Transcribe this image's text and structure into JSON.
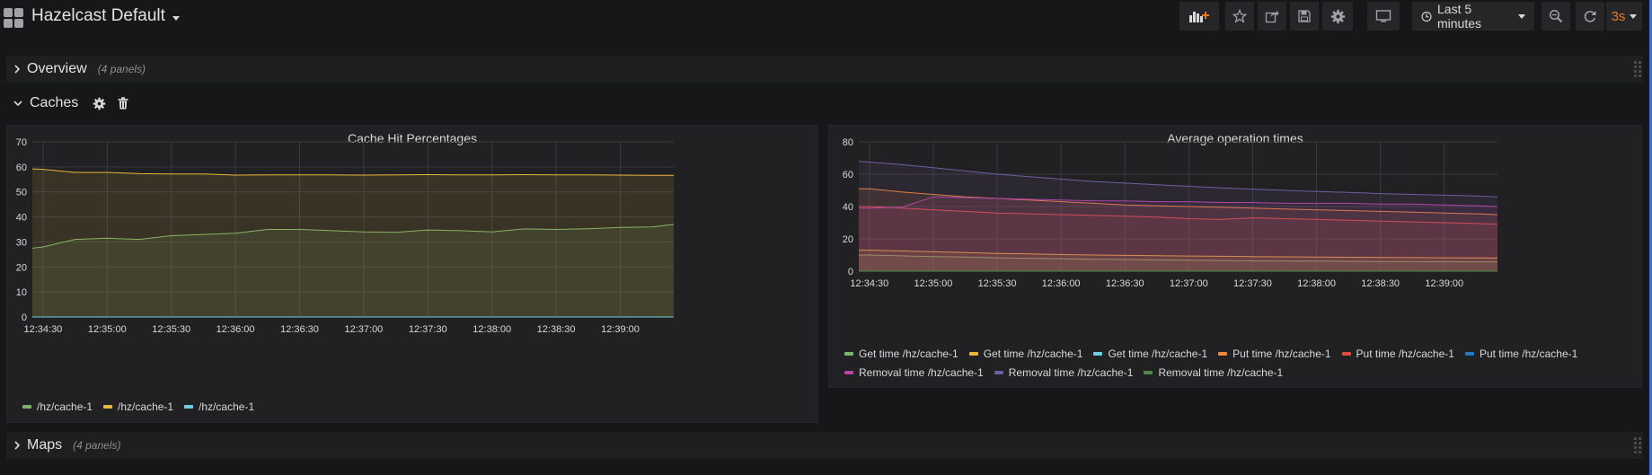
{
  "dashboard": {
    "title": "Hazelcast Default"
  },
  "toolbar": {
    "add_panel_icon": "add-panel-icon",
    "time_range": "Last 5 minutes",
    "refresh_interval": "3s"
  },
  "rows": {
    "overview": {
      "title": "Overview",
      "count": "(4 panels)"
    },
    "caches": {
      "title": "Caches"
    },
    "maps": {
      "title": "Maps",
      "count": "(4 panels)"
    }
  },
  "colors": {
    "green": "#7eb26d",
    "yellow": "#eab839",
    "cyan": "#6ed0e0",
    "orange": "#ef843c",
    "red": "#e24d42",
    "blue": "#1f78c1",
    "magenta": "#ba43a9",
    "purple": "#705da0",
    "darkgreen": "#508642"
  },
  "chart_data": [
    {
      "type": "area",
      "title": "Cache Hit Percentages",
      "ylim": [
        0,
        70
      ],
      "yticks": [
        "70",
        "60",
        "50",
        "40",
        "30",
        "20",
        "10",
        "0"
      ],
      "xticks": [
        "12:34:30",
        "12:35:00",
        "12:35:30",
        "12:36:00",
        "12:36:30",
        "12:37:00",
        "12:37:30",
        "12:38:00",
        "12:38:30",
        "12:39:00"
      ],
      "x": [
        "12:34:25",
        "12:34:30",
        "12:34:45",
        "12:35:00",
        "12:35:15",
        "12:35:30",
        "12:35:45",
        "12:36:00",
        "12:36:15",
        "12:36:30",
        "12:36:45",
        "12:37:00",
        "12:37:15",
        "12:37:30",
        "12:37:45",
        "12:38:00",
        "12:38:15",
        "12:38:30",
        "12:38:45",
        "12:39:00",
        "12:39:15",
        "12:39:25"
      ],
      "series": [
        {
          "name": "/hz/cache-1",
          "color": "#7eb26d",
          "values": [
            27.5,
            28,
            31,
            31.5,
            31,
            32.5,
            33,
            33.5,
            35,
            35,
            34.5,
            34,
            33.8,
            34.8,
            34.5,
            34,
            35.2,
            35,
            35.3,
            35.8,
            36,
            37
          ]
        },
        {
          "name": "/hz/cache-1",
          "color": "#eab839",
          "values": [
            59.2,
            59,
            57.8,
            57.8,
            57.3,
            57.2,
            57.2,
            56.7,
            56.8,
            56.8,
            56.8,
            56.7,
            56.8,
            56.9,
            56.8,
            56.8,
            56.9,
            56.8,
            56.8,
            56.7,
            56.6,
            56.6
          ]
        },
        {
          "name": "/hz/cache-1",
          "color": "#6ed0e0",
          "values": [
            0,
            0,
            0,
            0,
            0,
            0,
            0,
            0,
            0,
            0,
            0,
            0,
            0,
            0,
            0,
            0,
            0,
            0,
            0,
            0,
            0,
            0
          ]
        }
      ]
    },
    {
      "type": "area",
      "title": "Average operation times",
      "ylim": [
        0,
        80
      ],
      "yticks": [
        "80",
        "60",
        "40",
        "20",
        "0"
      ],
      "xticks": [
        "12:34:30",
        "12:35:00",
        "12:35:30",
        "12:36:00",
        "12:36:30",
        "12:37:00",
        "12:37:30",
        "12:38:00",
        "12:38:30",
        "12:39:00"
      ],
      "x": [
        "12:34:25",
        "12:34:30",
        "12:34:45",
        "12:35:00",
        "12:35:15",
        "12:35:30",
        "12:35:45",
        "12:36:00",
        "12:36:15",
        "12:36:30",
        "12:36:45",
        "12:37:00",
        "12:37:15",
        "12:37:30",
        "12:37:45",
        "12:38:00",
        "12:38:15",
        "12:38:30",
        "12:38:45",
        "12:39:00",
        "12:39:15",
        "12:39:25"
      ],
      "series": [
        {
          "name": "Get time /hz/cache-1",
          "color": "#7eb26d",
          "values": [
            10,
            10,
            9.5,
            9,
            8.7,
            8.3,
            8,
            7.7,
            7.4,
            7.2,
            7,
            6.8,
            6.6,
            6.4,
            6.3,
            6.2,
            6.1,
            6,
            6,
            5.9,
            5.8,
            5.8
          ]
        },
        {
          "name": "Get time /hz/cache-1",
          "color": "#eab839",
          "values": [
            13,
            13,
            12.5,
            12,
            11.5,
            11,
            10.7,
            10.3,
            10,
            9.8,
            9.6,
            9.4,
            9.2,
            9,
            8.9,
            8.8,
            8.6,
            8.5,
            8.4,
            8.3,
            8.2,
            8.1
          ]
        },
        {
          "name": "Get time /hz/cache-1",
          "color": "#6ed0e0",
          "values": [
            0,
            0,
            0,
            0,
            0,
            0,
            0,
            0,
            0,
            0,
            0,
            0,
            0,
            0,
            0,
            0,
            0,
            0,
            0,
            0,
            0,
            0
          ]
        },
        {
          "name": "Put time /hz/cache-1",
          "color": "#ef843c",
          "values": [
            51,
            51,
            49,
            47.5,
            46,
            45,
            44,
            43,
            42,
            41,
            40.5,
            40,
            39.5,
            39,
            38.5,
            38,
            37.5,
            37,
            36.5,
            36,
            35.5,
            35
          ]
        },
        {
          "name": "Put time /hz/cache-1",
          "color": "#e24d42",
          "values": [
            40,
            40,
            39,
            38,
            37,
            36,
            35.5,
            35,
            34.5,
            34,
            33.5,
            32.5,
            32,
            33,
            32.5,
            32,
            31.5,
            31,
            30.5,
            30,
            29.5,
            29
          ]
        },
        {
          "name": "Put time /hz/cache-1",
          "color": "#1f78c1",
          "values": [
            0,
            0,
            0,
            0,
            0,
            0,
            0,
            0,
            0,
            0,
            0,
            0,
            0,
            0,
            0,
            0,
            0,
            0,
            0,
            0,
            0,
            0
          ]
        },
        {
          "name": "Removal time /hz/cache-1",
          "color": "#ba43a9",
          "values": [
            39,
            39,
            39.5,
            46,
            45.5,
            45,
            44.5,
            44,
            43.5,
            43.5,
            43,
            43,
            42.5,
            42.5,
            42,
            42,
            42,
            41.5,
            41.5,
            41,
            40.5,
            40
          ]
        },
        {
          "name": "Removal time /hz/cache-1",
          "color": "#705da0",
          "values": [
            68,
            67.5,
            66,
            64,
            62,
            60,
            58.5,
            57,
            55.5,
            54.5,
            53.5,
            52.5,
            51.5,
            50.8,
            50,
            49.3,
            48.7,
            48,
            47.5,
            47,
            46.5,
            46
          ]
        },
        {
          "name": "Removal time /hz/cache-1",
          "color": "#508642",
          "values": [
            0,
            0,
            0,
            0,
            0,
            0,
            0,
            0,
            0,
            0,
            0,
            0,
            0,
            0,
            0,
            0,
            0,
            0,
            0,
            0,
            0,
            0
          ]
        }
      ]
    }
  ]
}
